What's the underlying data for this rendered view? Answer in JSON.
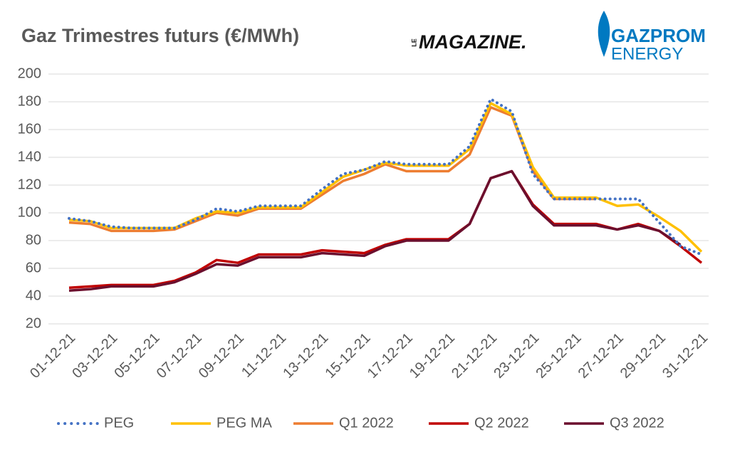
{
  "chart_data": {
    "type": "line",
    "title": "Gaz Trimestres futurs (€/MWh)",
    "logos": {
      "magazine_le": "LE",
      "magazine": "MAGAZINE.",
      "brand": "GAZPROM",
      "brand_sub": "ENERGY"
    },
    "categories": [
      "01-12-21",
      null,
      "03-12-21",
      null,
      "05-12-21",
      null,
      "07-12-21",
      null,
      "09-12-21",
      null,
      "11-12-21",
      null,
      "13-12-21",
      null,
      "15-12-21",
      null,
      "17-12-21",
      null,
      "19-12-21",
      null,
      "21-12-21",
      null,
      "23-12-21",
      null,
      "25-12-21",
      null,
      "27-12-21",
      null,
      "29-12-21",
      null,
      "31-12-21"
    ],
    "series": [
      {
        "name": "PEG",
        "color": "#4472c4",
        "style": "dotted",
        "values": [
          96,
          94,
          90,
          89,
          89,
          89,
          95,
          103,
          101,
          105,
          105,
          105,
          117,
          128,
          131,
          137,
          135,
          135,
          135,
          148,
          182,
          173,
          128,
          110,
          110,
          110,
          110,
          110,
          93,
          76,
          70
        ]
      },
      {
        "name": "PEG MA",
        "color": "#ffc000",
        "style": "solid",
        "values": [
          95,
          94,
          89,
          89,
          89,
          89,
          96,
          101,
          100,
          104,
          104,
          104,
          115,
          126,
          131,
          136,
          134,
          134,
          134,
          146,
          179,
          171,
          133,
          111,
          111,
          111,
          105,
          106,
          97,
          87,
          72
        ]
      },
      {
        "name": "Q1 2022",
        "color": "#ed7d31",
        "style": "solid",
        "values": [
          93,
          92,
          87,
          87,
          87,
          88,
          94,
          100,
          98,
          103,
          103,
          103,
          113,
          123,
          128,
          135,
          130,
          130,
          130,
          142,
          176,
          170,
          130,
          110,
          110,
          110,
          null,
          null,
          null,
          null,
          null
        ]
      },
      {
        "name": "Q2 2022",
        "color": "#c00000",
        "style": "solid",
        "values": [
          46,
          47,
          48,
          48,
          48,
          51,
          57,
          66,
          64,
          70,
          70,
          70,
          73,
          72,
          71,
          77,
          81,
          81,
          81,
          92,
          125,
          130,
          106,
          92,
          92,
          92,
          88,
          92,
          87,
          76,
          64
        ]
      },
      {
        "name": "Q3 2022",
        "color": "#6b0f2e",
        "style": "solid",
        "values": [
          44,
          45,
          47,
          47,
          47,
          50,
          56,
          63,
          62,
          68,
          68,
          68,
          71,
          70,
          69,
          76,
          80,
          80,
          80,
          92,
          125,
          130,
          105,
          91,
          91,
          91,
          88,
          91,
          87,
          77,
          null
        ]
      }
    ],
    "ylim": [
      20,
      200
    ],
    "yticks": [
      20,
      40,
      60,
      80,
      100,
      120,
      140,
      160,
      180,
      200
    ],
    "grid": true,
    "legend": "bottom"
  }
}
